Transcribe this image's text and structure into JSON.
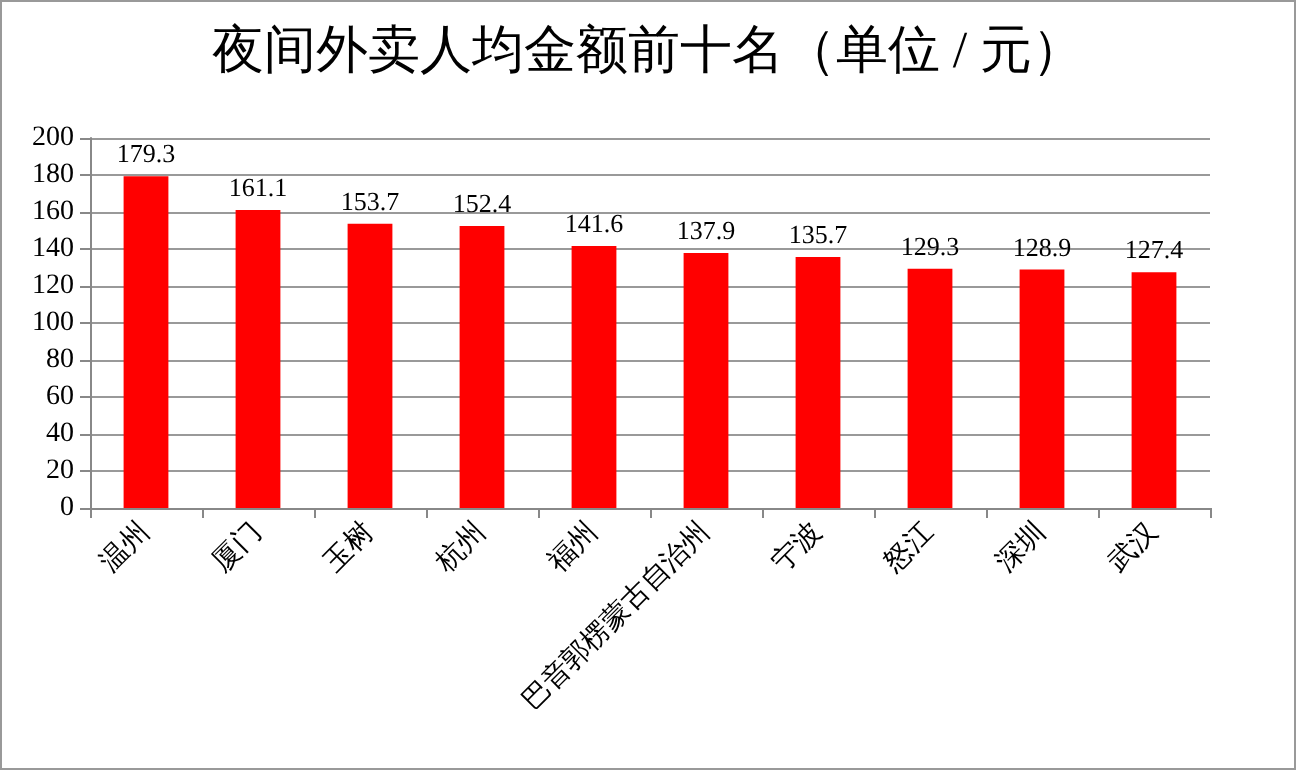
{
  "chart_data": {
    "type": "bar",
    "title": "夜间外卖人均金额前十名（单位 / 元）",
    "categories": [
      "温州",
      "厦门",
      "玉树",
      "杭州",
      "福州",
      "巴音郭楞蒙古自治州",
      "宁波",
      "怒江",
      "深圳",
      "武汉"
    ],
    "values": [
      179.3,
      161.1,
      153.7,
      152.4,
      141.6,
      137.9,
      135.7,
      129.3,
      128.9,
      127.4
    ],
    "color": "#ff0000",
    "ylim": [
      0,
      200
    ],
    "yticks": [
      0,
      20,
      40,
      60,
      80,
      100,
      120,
      140,
      160,
      180,
      200
    ],
    "grid": "y",
    "data_labels": true
  }
}
